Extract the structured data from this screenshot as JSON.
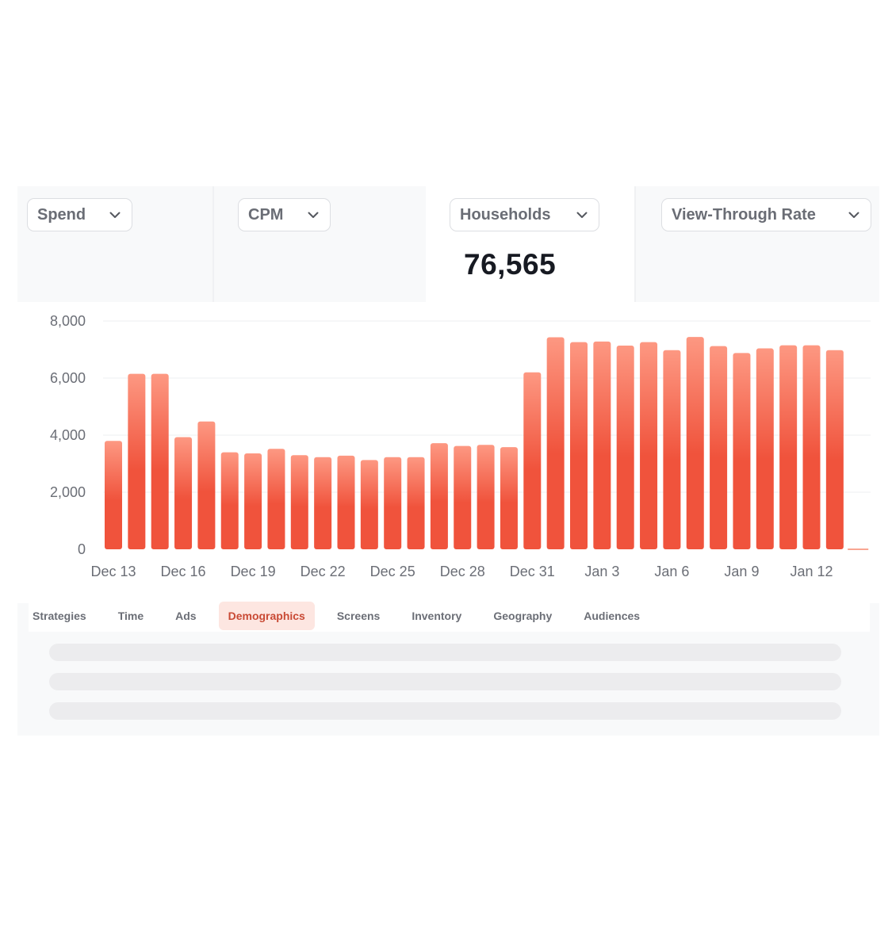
{
  "metrics": [
    {
      "label": "Spend",
      "value": "",
      "active": false
    },
    {
      "label": "CPM",
      "value": "",
      "active": false
    },
    {
      "label": "Households",
      "value": "76,565",
      "active": true
    },
    {
      "label": "View-Through Rate",
      "value": "",
      "active": false
    }
  ],
  "tabs": [
    {
      "label": "Strategies",
      "selected": false
    },
    {
      "label": "Time",
      "selected": false
    },
    {
      "label": "Ads",
      "selected": false
    },
    {
      "label": "Demographics",
      "selected": true
    },
    {
      "label": "Screens",
      "selected": false
    },
    {
      "label": "Inventory",
      "selected": false
    },
    {
      "label": "Geography",
      "selected": false
    },
    {
      "label": "Audiences",
      "selected": false
    }
  ],
  "colors": {
    "bar_top": "#fd9882",
    "bar_bottom": "#f0533c",
    "tab_selected_bg": "#fde6e1",
    "tab_selected_text": "#c94a35"
  },
  "icons": {
    "dropdown": "chevron-down-icon"
  },
  "chart_data": {
    "type": "bar",
    "x": [
      "Dec 13",
      "Dec 14",
      "Dec 15",
      "Dec 16",
      "Dec 17",
      "Dec 18",
      "Dec 19",
      "Dec 20",
      "Dec 21",
      "Dec 22",
      "Dec 23",
      "Dec 24",
      "Dec 25",
      "Dec 26",
      "Dec 27",
      "Dec 28",
      "Dec 29",
      "Dec 30",
      "Dec 31",
      "Jan 1",
      "Jan 2",
      "Jan 3",
      "Jan 4",
      "Jan 5",
      "Jan 6",
      "Jan 7",
      "Jan 8",
      "Jan 9",
      "Jan 10",
      "Jan 11",
      "Jan 12",
      "Jan 13",
      "Jan 14"
    ],
    "values": [
      3800,
      6150,
      6150,
      3930,
      4480,
      3400,
      3360,
      3520,
      3300,
      3230,
      3280,
      3130,
      3230,
      3230,
      3720,
      3620,
      3660,
      3580,
      6200,
      7430,
      7260,
      7280,
      7140,
      7260,
      6980,
      7440,
      7120,
      6880,
      7040,
      7150,
      7150,
      6980,
      0
    ],
    "x_tick_labels": [
      "Dec 13",
      "Dec 16",
      "Dec 19",
      "Dec 22",
      "Dec 25",
      "Dec 28",
      "Dec 31",
      "Jan 3",
      "Jan 6",
      "Jan 9",
      "Jan 12"
    ],
    "y_ticks": [
      0,
      2000,
      4000,
      6000,
      8000
    ],
    "y_tick_labels": [
      "0",
      "2,000",
      "4,000",
      "6,000",
      "8,000"
    ],
    "ylim": [
      0,
      8000
    ],
    "title": "",
    "xlabel": "",
    "ylabel": "",
    "grid": true,
    "legend": "none"
  }
}
